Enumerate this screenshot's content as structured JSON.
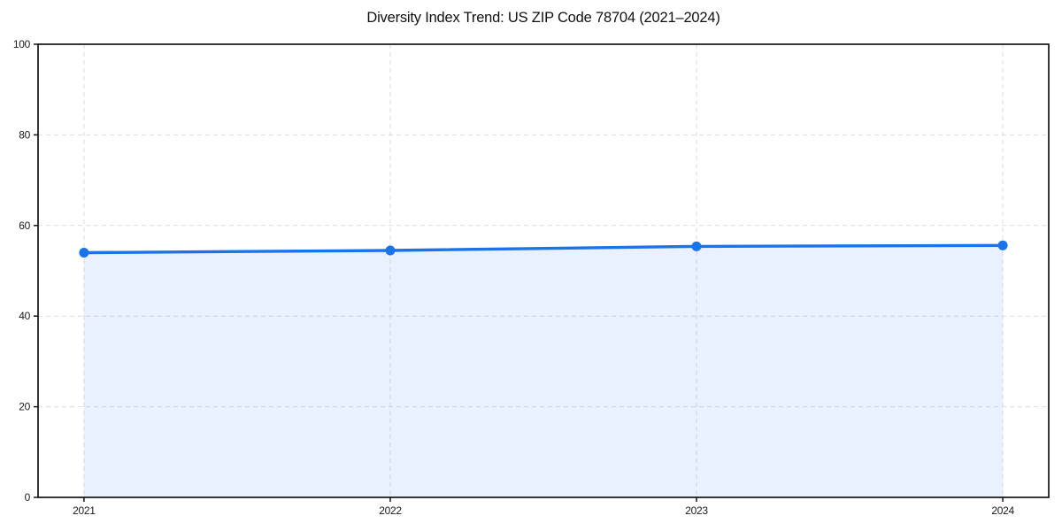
{
  "chart_data": {
    "type": "area",
    "title": "Diversity Index Trend: US ZIP Code 78704 (2021–2024)",
    "x": [
      2021,
      2022,
      2023,
      2024
    ],
    "x_tick_labels": [
      "2021",
      "2022",
      "2023",
      "2024"
    ],
    "series": [
      {
        "name": "Diversity Index",
        "values": [
          54.0,
          54.5,
          55.4,
          55.6
        ]
      }
    ],
    "xlabel": "",
    "ylabel": "",
    "ylim": [
      0,
      100
    ],
    "yticks": [
      0,
      20,
      40,
      60,
      80,
      100
    ],
    "grid": true,
    "grid_style": "dashed",
    "legend_position": "none",
    "line_color": "#1a73e8",
    "marker_color": "#1a73e8",
    "fill_color": "#1a73e8",
    "fill_opacity": 0.1,
    "grid_color": "#dcdcdc",
    "axis_color": "#141414",
    "tick_label_color": "#1a1a1a",
    "background_color": "#ffffff"
  }
}
